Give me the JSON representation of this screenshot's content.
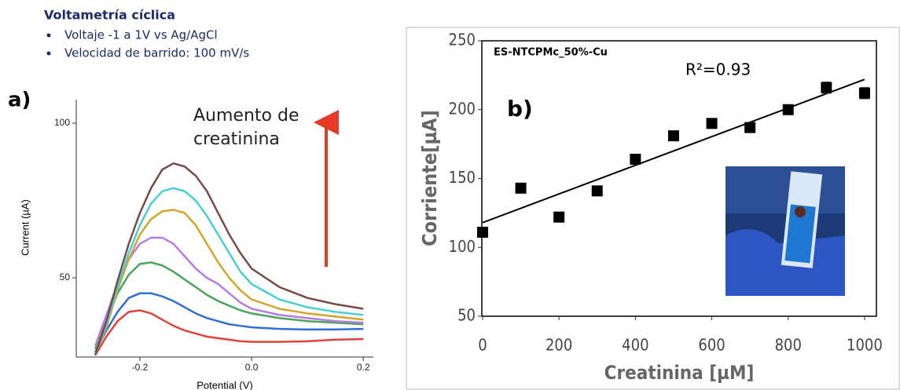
{
  "header": {
    "title": "Voltametría cíclica",
    "bullets": [
      "Voltaje -1 a 1V vs Ag/AgCl",
      "Velocidad de barrido: 100 mV/s"
    ]
  },
  "chart_data": [
    {
      "type": "line",
      "panel_label": "a)",
      "annotation": [
        "Aumento de",
        "creatinina"
      ],
      "x_label": "Potential (V)",
      "y_label": "Current (µA)",
      "x": [
        -0.28,
        -0.26,
        -0.24,
        -0.22,
        -0.2,
        -0.18,
        -0.16,
        -0.14,
        -0.12,
        -0.1,
        -0.08,
        -0.06,
        -0.04,
        -0.02,
        0,
        0.05,
        0.1,
        0.15,
        0.2
      ],
      "xlim": [
        -0.314,
        0.218
      ],
      "ylim": [
        24.4,
        107.6
      ],
      "xticks": [
        -0.2,
        {
          "value": 0,
          "label": "0.0"
        },
        0.2
      ],
      "yticks": [
        50,
        100
      ],
      "series": [
        {
          "color": "#e0413a",
          "values": [
            25,
            31,
            36,
            39,
            39.5,
            38.5,
            36.5,
            34.5,
            33,
            32,
            31,
            30.5,
            30,
            29.5,
            29.3,
            29.3,
            29.5,
            30,
            30.2
          ]
        },
        {
          "color": "#2f6fd6",
          "values": [
            26,
            33,
            39,
            43.5,
            45,
            45,
            44,
            42.5,
            40.5,
            38.5,
            37,
            36,
            35,
            34.5,
            34,
            33.5,
            33.3,
            33.3,
            33.5
          ]
        },
        {
          "color": "#4aa35a",
          "values": [
            27,
            36,
            45,
            51,
            54.5,
            55,
            54,
            52,
            49.5,
            47,
            44.5,
            42.5,
            41,
            39.5,
            38.5,
            37,
            36,
            35.5,
            35
          ]
        },
        {
          "color": "#b77be6",
          "values": [
            28,
            38,
            48,
            56,
            61,
            63,
            63,
            61,
            57,
            53,
            50,
            48,
            45,
            42,
            40,
            38,
            37,
            36,
            35.5
          ]
        },
        {
          "color": "#d4a52a",
          "values": [
            25,
            34,
            46,
            56,
            64,
            69,
            71.5,
            72,
            71,
            67,
            61,
            55,
            50,
            46,
            43,
            40,
            38.5,
            37.5,
            36.5
          ]
        },
        {
          "color": "#47cfd6",
          "values": [
            25,
            35,
            47,
            58,
            67,
            74,
            78,
            79,
            78,
            75,
            70,
            64,
            58,
            52,
            48,
            43,
            40.5,
            39,
            38
          ]
        },
        {
          "color": "#7a4a4a",
          "values": [
            25,
            36,
            49,
            61,
            71,
            79,
            85,
            87,
            86,
            83,
            78,
            71,
            64,
            58,
            53,
            47,
            43.5,
            41.5,
            40
          ]
        }
      ]
    },
    {
      "type": "scatter",
      "panel_label": "b)",
      "title": "ES-NTCPMc_50%-Cu",
      "annotation": "R²=0.93",
      "x_label": "Creatinina [µM]",
      "y_label": "Corriente[µA]",
      "x": [
        0,
        100,
        200,
        300,
        400,
        500,
        600,
        700,
        800,
        900,
        1000
      ],
      "xlim": [
        -2,
        1031
      ],
      "ylim": [
        50,
        250
      ],
      "xticks": [
        0,
        200,
        400,
        600,
        800,
        1000
      ],
      "yticks": [
        50,
        100,
        150,
        200,
        250
      ],
      "series": [
        {
          "color": "#000000",
          "values": [
            111,
            143,
            122,
            141,
            164,
            181,
            190,
            187,
            200,
            216,
            212
          ],
          "errors": [
            3,
            3,
            3,
            3,
            3,
            3,
            3,
            3,
            3,
            4,
            4
          ]
        }
      ],
      "trendline": {
        "x": [
          0,
          1000
        ],
        "y": [
          118,
          222
        ]
      }
    }
  ]
}
